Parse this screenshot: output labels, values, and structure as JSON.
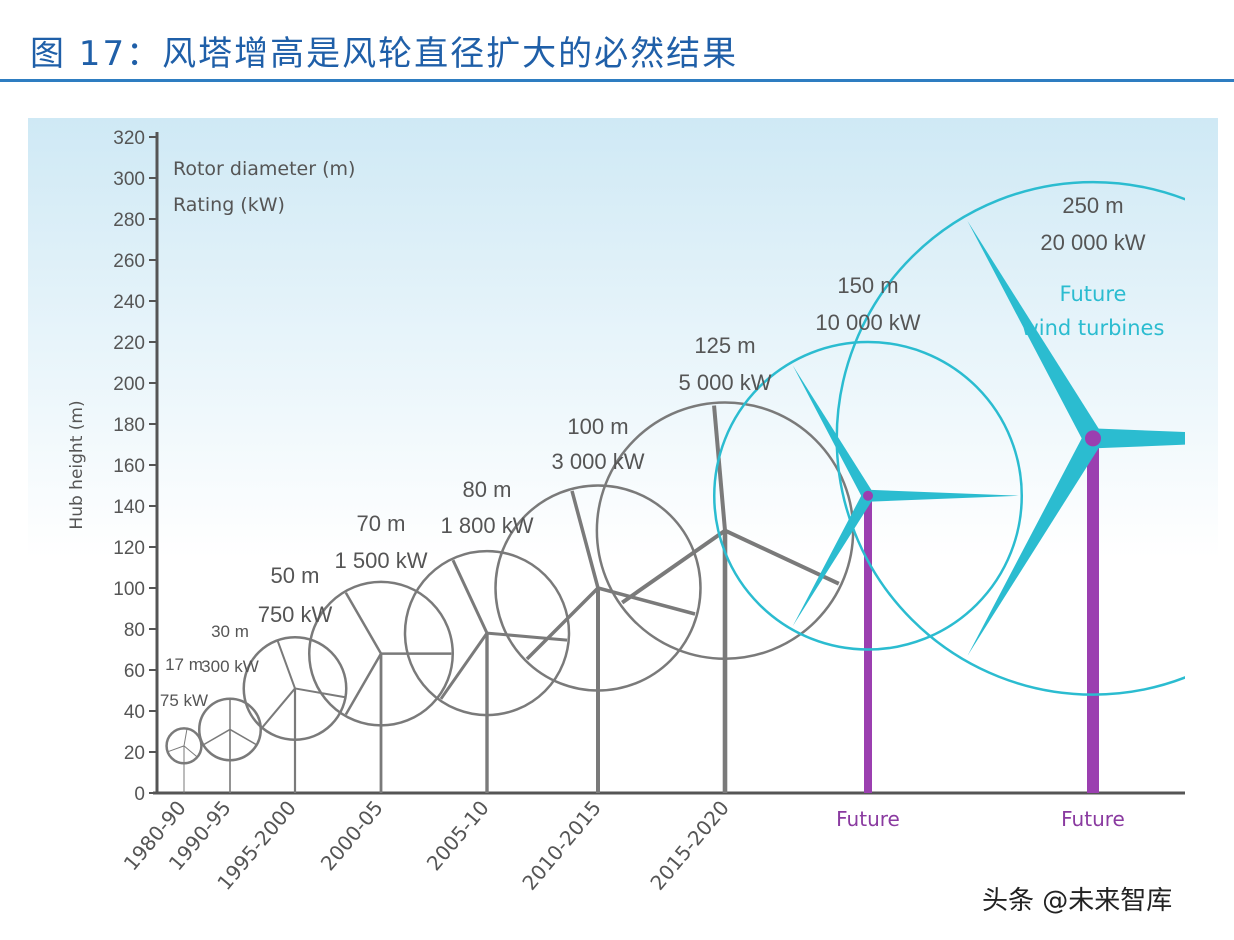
{
  "header": {
    "title": "图 17：风塔增高是风轮直径扩大的必然结果"
  },
  "watermark": "头条 @未来智库",
  "colors": {
    "title": "#1f5fa8",
    "existing": "#7a7a7a",
    "future_blade": "#2bbcd0",
    "future_tower": "#9b3fb0",
    "future_label": "#8a3aa0",
    "sky": "#cfe9f5"
  },
  "chart_data": {
    "type": "scatter",
    "title": "",
    "xlabel": "",
    "ylabel": "Hub height (m)",
    "ylim": [
      0,
      320
    ],
    "yticks": [
      0,
      20,
      40,
      60,
      80,
      100,
      120,
      140,
      160,
      180,
      200,
      220,
      240,
      260,
      280,
      300,
      320
    ],
    "legend": {
      "lines": [
        "Rotor diameter (m)",
        "Rating (kW)"
      ],
      "placement": "top-left"
    },
    "annotation": [
      "Future",
      "wind turbines"
    ],
    "turbines": [
      {
        "period": "1980-90",
        "rotor_diameter_m": 17,
        "rating_kW": 75,
        "hub_height_m": 23,
        "diam_label": "17 m",
        "rating_label": "75 kW",
        "future": false
      },
      {
        "period": "1990-95",
        "rotor_diameter_m": 30,
        "rating_kW": 300,
        "hub_height_m": 31,
        "diam_label": "30 m",
        "rating_label": "300 kW",
        "future": false
      },
      {
        "period": "1995-2000",
        "rotor_diameter_m": 50,
        "rating_kW": 750,
        "hub_height_m": 51,
        "diam_label": "50 m",
        "rating_label": "750 kW",
        "future": false
      },
      {
        "period": "2000-05",
        "rotor_diameter_m": 70,
        "rating_kW": 1500,
        "hub_height_m": 68,
        "diam_label": "70 m",
        "rating_label": "1 500 kW",
        "future": false
      },
      {
        "period": "2005-10",
        "rotor_diameter_m": 80,
        "rating_kW": 1800,
        "hub_height_m": 78,
        "diam_label": "80 m",
        "rating_label": "1 800 kW",
        "future": false
      },
      {
        "period": "2010-2015",
        "rotor_diameter_m": 100,
        "rating_kW": 3000,
        "hub_height_m": 100,
        "diam_label": "100 m",
        "rating_label": "3 000 kW",
        "future": false
      },
      {
        "period": "2015-2020",
        "rotor_diameter_m": 125,
        "rating_kW": 5000,
        "hub_height_m": 128,
        "diam_label": "125 m",
        "rating_label": "5 000 kW",
        "future": false
      },
      {
        "period": "Future",
        "rotor_diameter_m": 150,
        "rating_kW": 10000,
        "hub_height_m": 145,
        "diam_label": "150 m",
        "rating_label": "10 000 kW",
        "future": true
      },
      {
        "period": "Future",
        "rotor_diameter_m": 250,
        "rating_kW": 20000,
        "hub_height_m": 173,
        "diam_label": "250 m",
        "rating_label": "20 000 kW",
        "future": true
      }
    ]
  }
}
